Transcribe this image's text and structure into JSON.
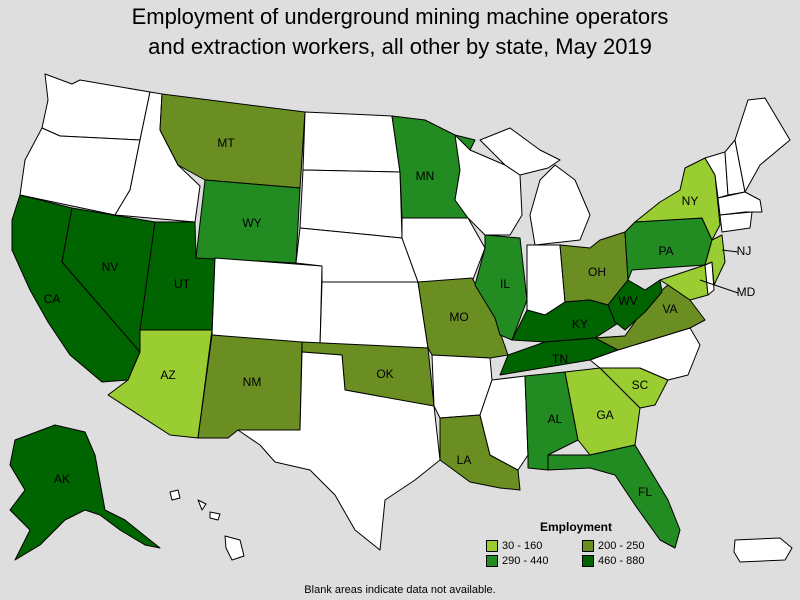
{
  "title": {
    "line1": "Employment of underground mining machine operators",
    "line2": "and extraction workers, all other by state, May 2019"
  },
  "colors": {
    "none": "#ffffff",
    "c30_160": "#9acd32",
    "c200_250": "#6b8e23",
    "c290_440": "#228b22",
    "c460_880": "#006400",
    "background": "#dedede"
  },
  "legend": {
    "title": "Employment",
    "items": [
      {
        "label": "30 - 160",
        "color": "#9acd32"
      },
      {
        "label": "200 - 250",
        "color": "#6b8e23"
      },
      {
        "label": "290 - 440",
        "color": "#228b22"
      },
      {
        "label": "460 - 880",
        "color": "#006400"
      }
    ]
  },
  "footnote": "Blank areas indicate data not available.",
  "state_labels": {
    "MT": "MT",
    "WY": "WY",
    "MN": "MN",
    "NY": "NY",
    "NJ": "NJ",
    "PA": "PA",
    "MD": "MD",
    "OH": "OH",
    "IL": "IL",
    "NV": "NV",
    "UT": "UT",
    "CA": "CA",
    "WV": "WV",
    "KY": "KY",
    "VA": "VA",
    "MO": "MO",
    "AZ": "AZ",
    "NM": "NM",
    "OK": "OK",
    "TN": "TN",
    "SC": "SC",
    "AL": "AL",
    "GA": "GA",
    "LA": "LA",
    "FL": "FL",
    "AK": "AK"
  }
}
